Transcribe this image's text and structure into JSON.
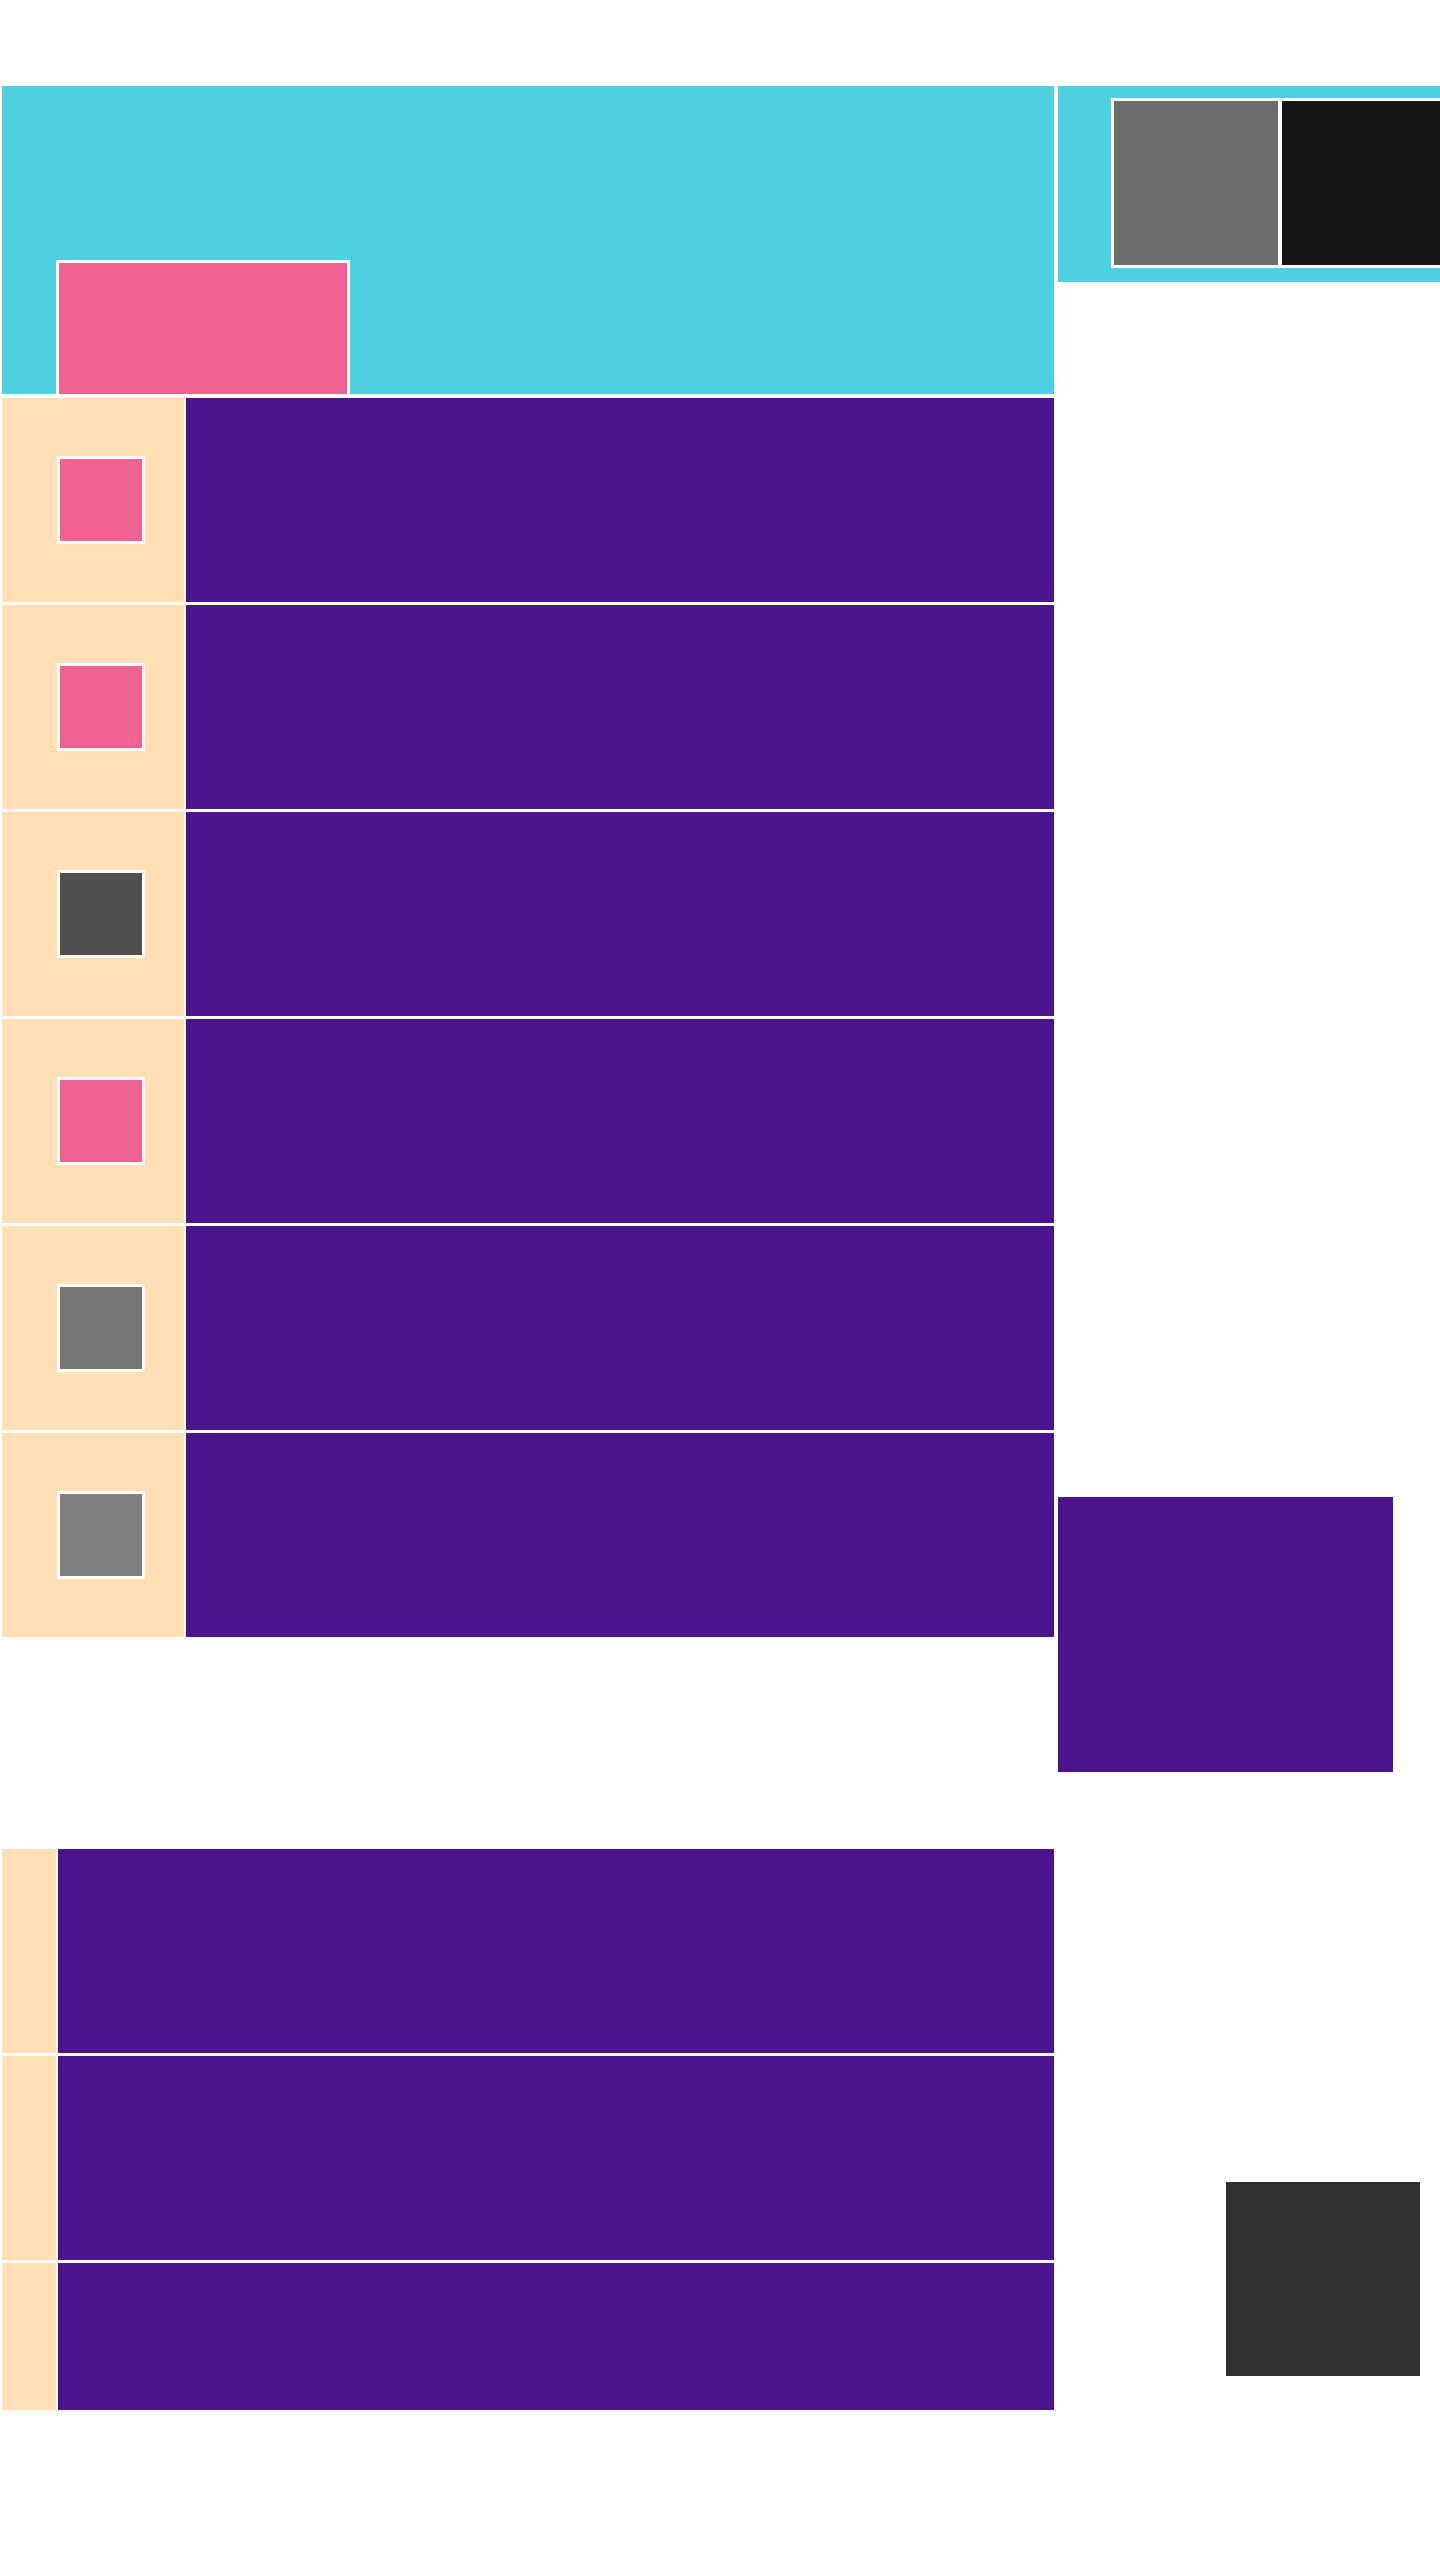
{
  "colors": {
    "header": "#4dd0e2",
    "accent_pink": "#f06292",
    "row_left": "#ffdfb3",
    "row_main": "#4a148c",
    "swatch_gray": "#6d6d6d",
    "swatch_black": "#161616",
    "fab": "#313131"
  },
  "rows": [
    {
      "thumb_color": "#f06292"
    },
    {
      "thumb_color": "#f06292"
    },
    {
      "thumb_color": "#4f4f4f"
    },
    {
      "thumb_color": "#f06292"
    },
    {
      "thumb_color": "#767676"
    },
    {
      "thumb_color": "#808080"
    }
  ],
  "lower_rows": [
    {
      "height_hint": "full"
    },
    {
      "height_hint": "full"
    },
    {
      "height_hint": "partial"
    }
  ]
}
